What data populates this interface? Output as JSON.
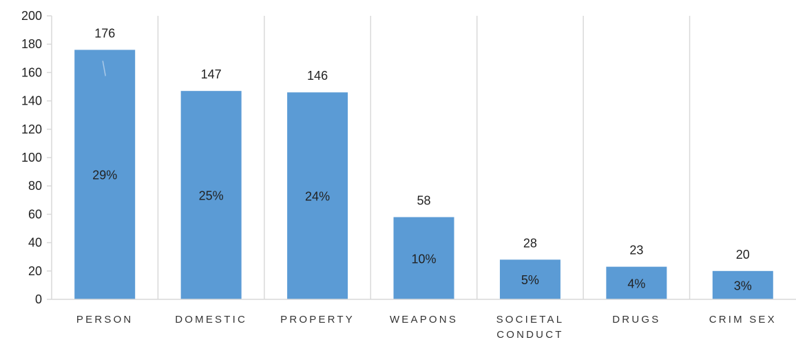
{
  "chart_data": {
    "type": "bar",
    "categories": [
      [
        "PERSON"
      ],
      [
        "DOMESTIC"
      ],
      [
        "PROPERTY"
      ],
      [
        "WEAPONS"
      ],
      [
        "SOCIETAL",
        "CONDUCT"
      ],
      [
        "DRUGS"
      ],
      [
        "CRIM SEX"
      ]
    ],
    "values": [
      176,
      147,
      146,
      58,
      28,
      23,
      20
    ],
    "percent_labels": [
      "29%",
      "25%",
      "24%",
      "10%",
      "5%",
      "4%",
      "3%"
    ],
    "title": "",
    "xlabel": "",
    "ylabel": "",
    "ylim": [
      0,
      200
    ],
    "yticks": [
      0,
      20,
      40,
      60,
      80,
      100,
      120,
      140,
      160,
      180,
      200
    ],
    "grid": "vertical category separators",
    "legend": "none",
    "bar_color": "#5b9bd5",
    "grid_color": "#d9d9d9"
  }
}
